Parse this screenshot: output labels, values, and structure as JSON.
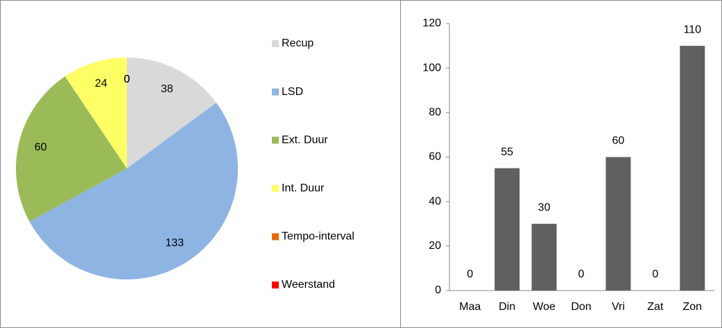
{
  "chart_data": [
    {
      "type": "pie",
      "categories": [
        "Recup",
        "LSD",
        "Ext. Duur",
        "Int. Duur",
        "Tempo-interval",
        "Weerstand"
      ],
      "values": [
        38,
        133,
        60,
        24,
        0,
        0
      ],
      "colors": [
        "#d9d9d9",
        "#8eb4e3",
        "#9bbb59",
        "#ffff66",
        "#e46c0a",
        "#ff0000"
      ],
      "legend": "right"
    },
    {
      "type": "bar",
      "categories": [
        "Maa",
        "Din",
        "Woe",
        "Don",
        "Vri",
        "Zat",
        "Zon"
      ],
      "values": [
        0,
        55,
        30,
        0,
        60,
        0,
        110
      ],
      "color": "#606060",
      "ylim": [
        0,
        120
      ],
      "yticks": [
        0,
        20,
        40,
        60,
        80,
        100,
        120
      ],
      "grid": false
    }
  ]
}
